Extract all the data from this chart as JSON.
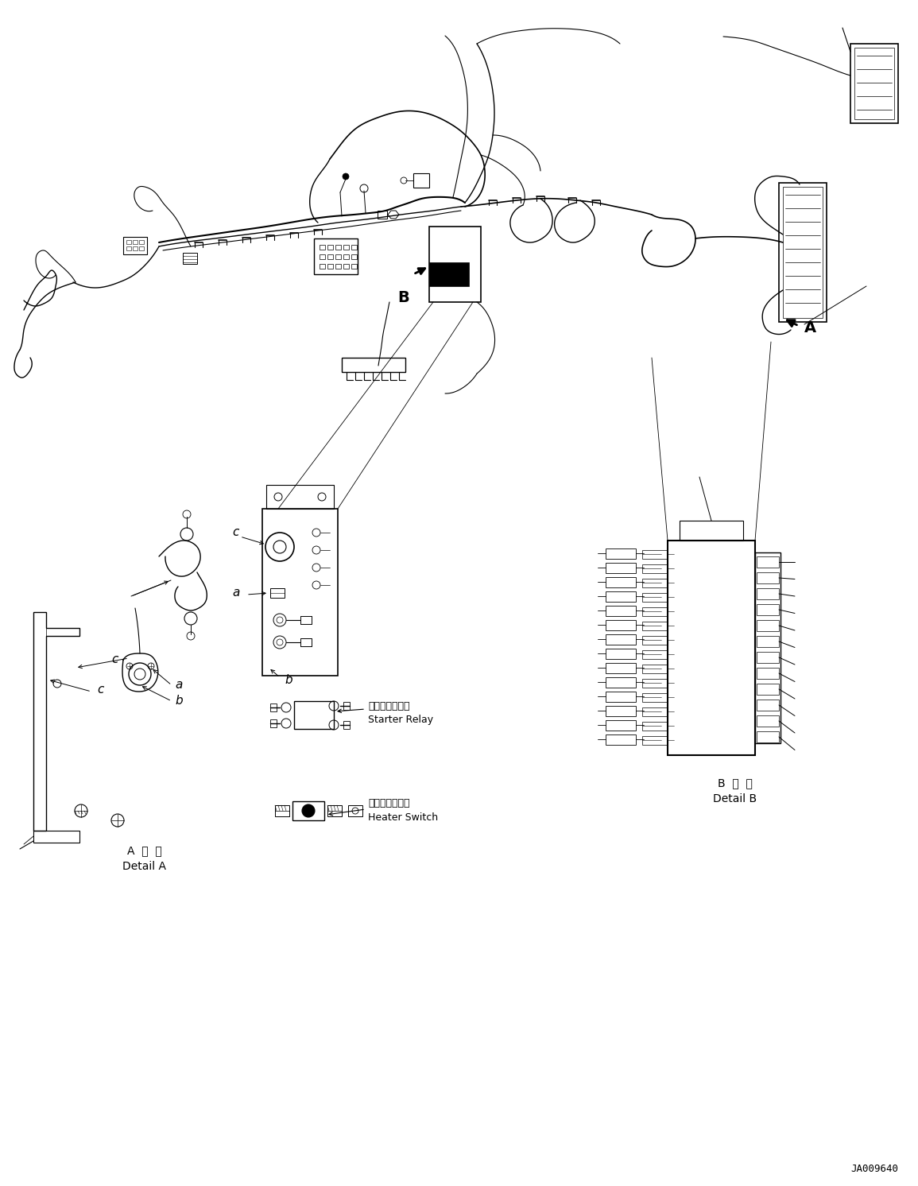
{
  "background_color": "#ffffff",
  "figure_width": 11.55,
  "figure_height": 14.92,
  "dpi": 100,
  "part_number": "JA009640",
  "detail_A_label_jp": "A 詳 細",
  "detail_A_label_en": "Detail A",
  "detail_B_label_jp": "B 詳 細",
  "detail_B_label_en": "Detail B",
  "starter_relay_jp": "スタータリレー",
  "starter_relay_en": "Starter Relay",
  "heater_switch_jp": "ヒータスイッチ",
  "heater_switch_en": "Heater Switch"
}
